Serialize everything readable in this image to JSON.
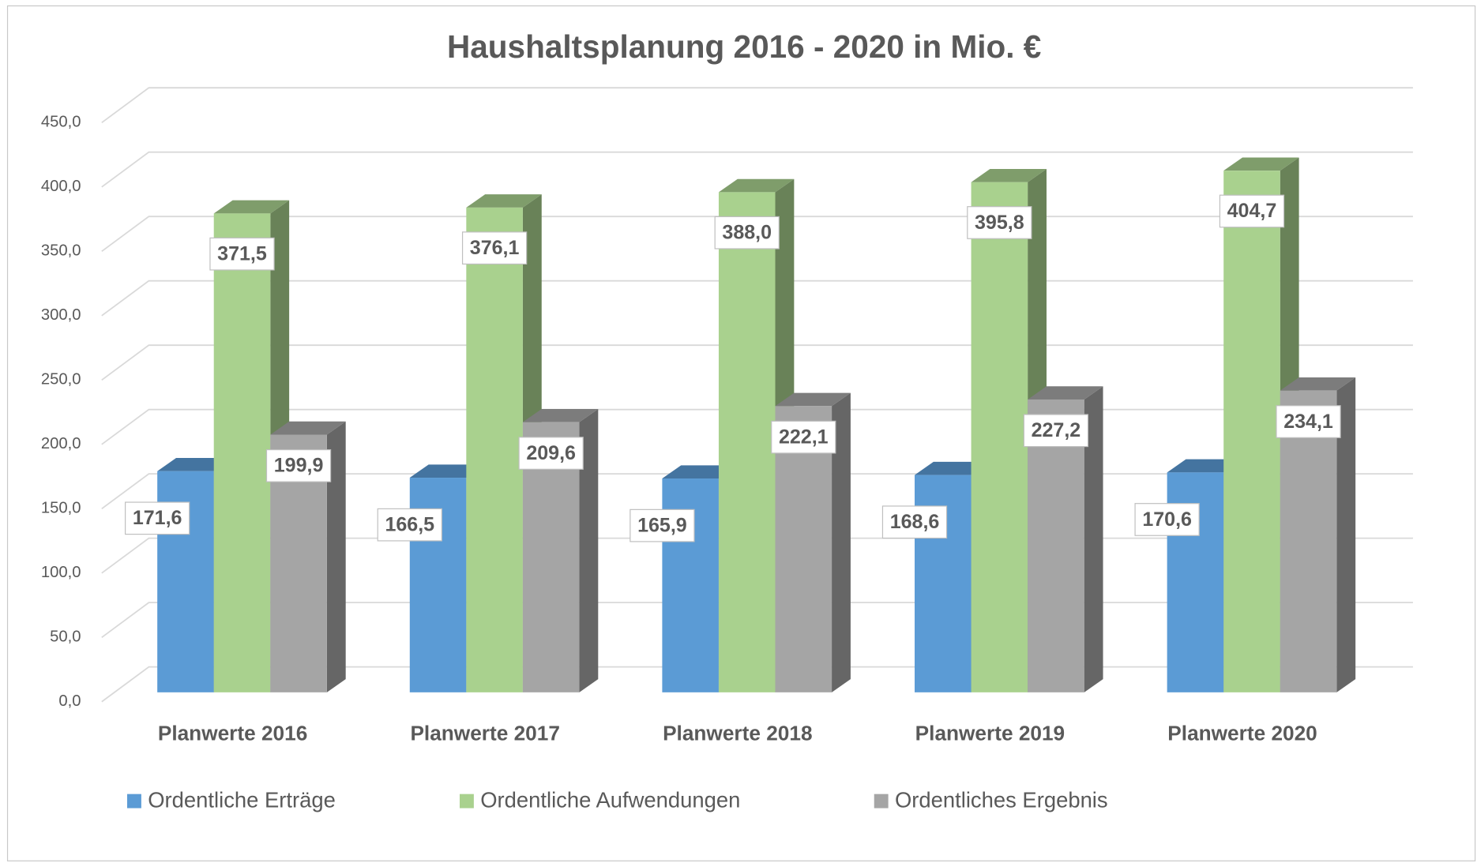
{
  "chart_data": {
    "type": "bar3d",
    "title": "Haushaltsplanung 2016 - 2020 in Mio. €",
    "categories": [
      "Planwerte 2016",
      "Planwerte 2017",
      "Planwerte 2018",
      "Planwerte 2019",
      "Planwerte 2020"
    ],
    "series": [
      {
        "name": "Ordentliche Erträge",
        "color": "#5b9bd5",
        "values": [
          171.6,
          166.5,
          165.9,
          168.6,
          170.6
        ],
        "value_labels": [
          "171,6",
          "166,5",
          "165,9",
          "168,6",
          "170,6"
        ]
      },
      {
        "name": "Ordentliche Aufwendungen",
        "color": "#a9d18e",
        "values": [
          371.5,
          376.1,
          388.0,
          395.8,
          404.7
        ],
        "value_labels": [
          "371,5",
          "376,1",
          "388,0",
          "395,8",
          "404,7"
        ]
      },
      {
        "name": "Ordentliches Ergebnis",
        "color": "#a5a5a5",
        "values": [
          199.9,
          209.6,
          222.1,
          227.2,
          234.1
        ],
        "value_labels": [
          "199,9",
          "209,6",
          "222,1",
          "227,2",
          "234,1"
        ]
      }
    ],
    "ylim": [
      0,
      450
    ],
    "yticks": [
      {
        "value": 0,
        "label": "0,0"
      },
      {
        "value": 50,
        "label": "50,0"
      },
      {
        "value": 100,
        "label": "100,0"
      },
      {
        "value": 150,
        "label": "150,0"
      },
      {
        "value": 200,
        "label": "200,0"
      },
      {
        "value": 250,
        "label": "250,0"
      },
      {
        "value": 300,
        "label": "300,0"
      },
      {
        "value": 350,
        "label": "350,0"
      },
      {
        "value": 400,
        "label": "400,0"
      },
      {
        "value": 450,
        "label": "450,0"
      }
    ],
    "grid": true,
    "legend": "bottom"
  }
}
